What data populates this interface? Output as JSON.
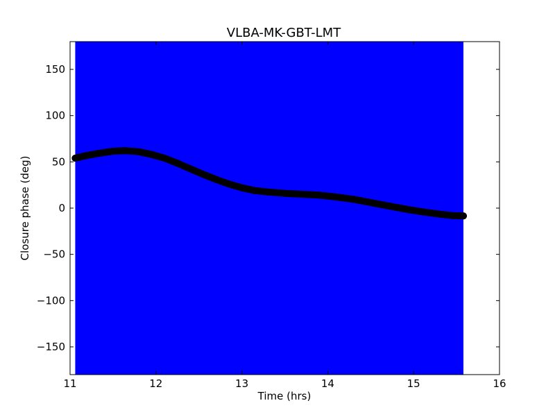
{
  "chart_data": {
    "type": "line",
    "title": "VLBA-MK-GBT-LMT",
    "xlabel": "Time (hrs)",
    "ylabel": "Closure phase (deg)",
    "xlim": [
      11,
      16
    ],
    "ylim": [
      -180,
      180
    ],
    "xticks": [
      11,
      12,
      13,
      14,
      15,
      16
    ],
    "xtick_labels": [
      "11",
      "12",
      "13",
      "14",
      "15",
      "16"
    ],
    "yticks": [
      150,
      100,
      50,
      0,
      -50,
      -100,
      -150
    ],
    "ytick_labels": [
      "150",
      "100",
      "50",
      "0",
      "−50",
      "−100",
      "−150"
    ],
    "grid": false,
    "legend": false,
    "shaded_region": {
      "x_start": 11.06,
      "x_end": 15.58,
      "color": "#0000ff"
    },
    "series": [
      {
        "color": "#000000",
        "marker": "circle",
        "x": [
          11.06,
          11.2,
          11.35,
          11.5,
          11.65,
          11.8,
          11.95,
          12.1,
          12.25,
          12.4,
          12.55,
          12.7,
          12.85,
          13.0,
          13.15,
          13.3,
          13.5,
          13.7,
          13.9,
          14.1,
          14.3,
          14.5,
          14.7,
          14.9,
          15.1,
          15.3,
          15.45,
          15.58
        ],
        "y": [
          54,
          57,
          59.5,
          61.5,
          62,
          61,
          58,
          54,
          48.5,
          42.5,
          36.5,
          31,
          26,
          22,
          19,
          17.5,
          16,
          15,
          14,
          12,
          9.5,
          6,
          2.5,
          -1,
          -4,
          -6.5,
          -8,
          -8.5
        ]
      }
    ]
  }
}
